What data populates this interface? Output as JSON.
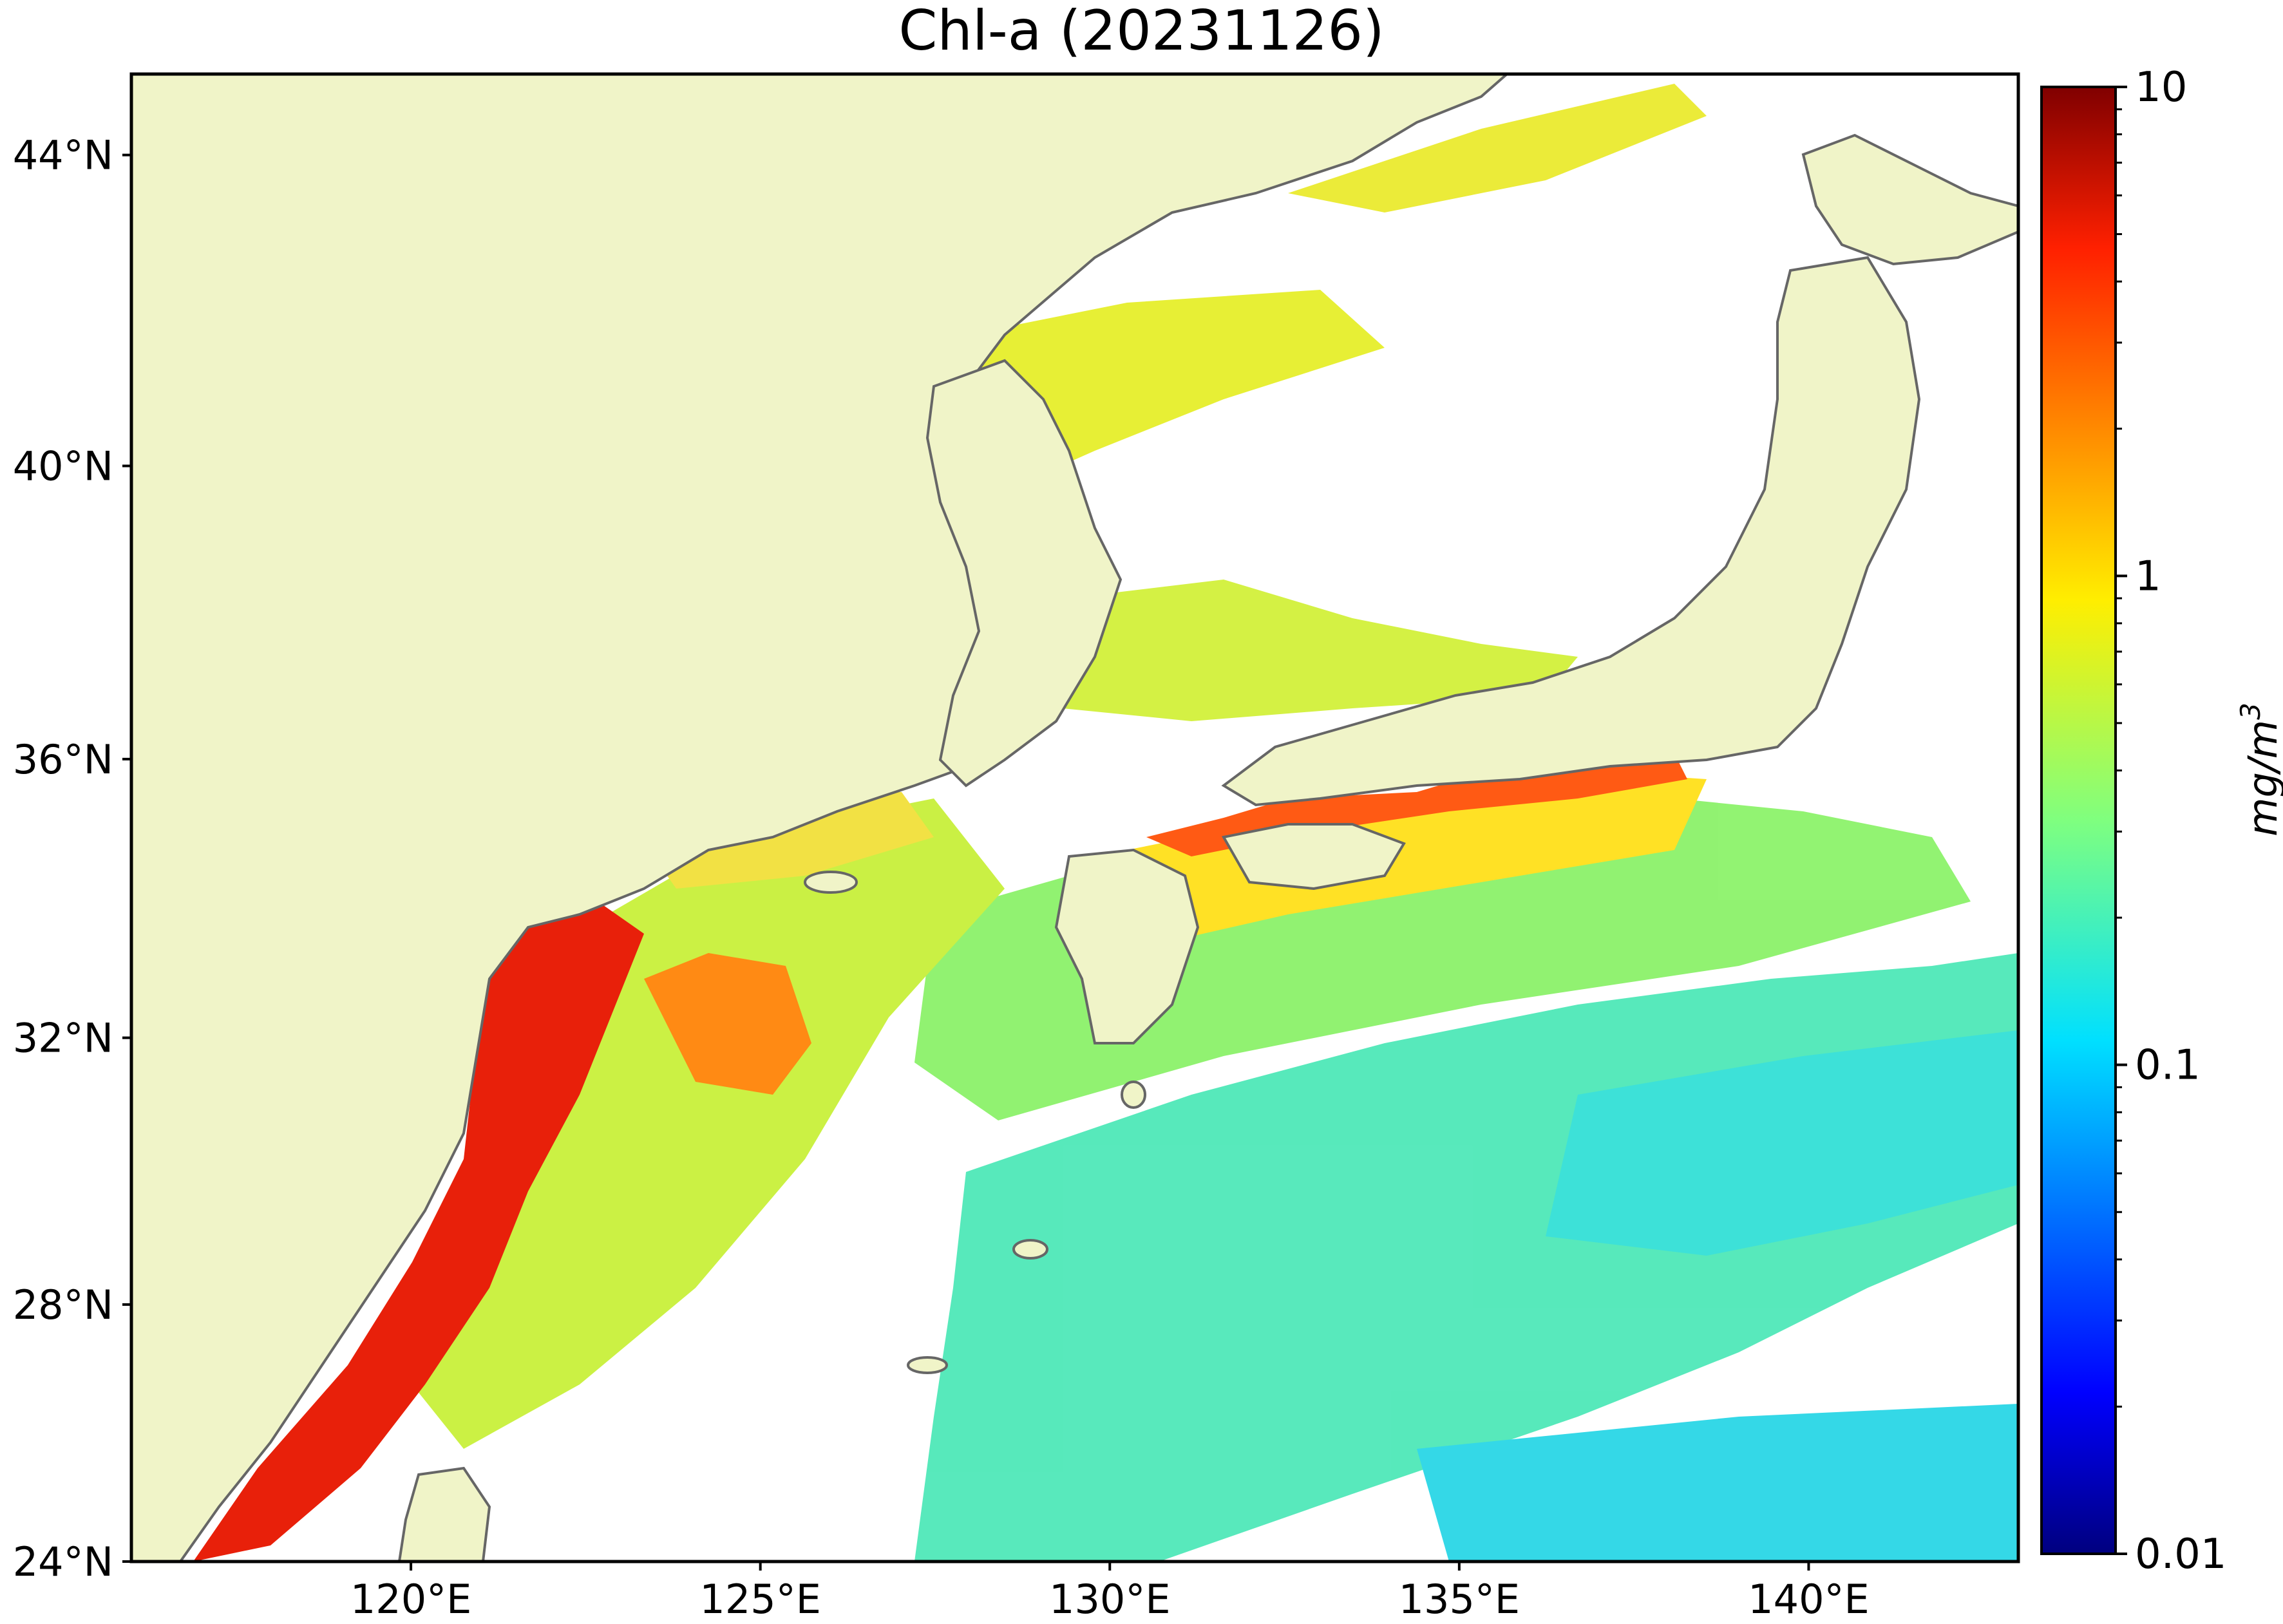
{
  "title": "Chl-a (20231126)",
  "map": {
    "lon_range": [
      116.0,
      143.0
    ],
    "lat_range": [
      24.0,
      45.0
    ],
    "lon_ticks": [
      {
        "value": 120,
        "label": "120°E"
      },
      {
        "value": 125,
        "label": "125°E"
      },
      {
        "value": 130,
        "label": "130°E"
      },
      {
        "value": 135,
        "label": "135°E"
      },
      {
        "value": 140,
        "label": "140°E"
      }
    ],
    "lat_ticks": [
      {
        "value": 24,
        "label": "24°N"
      },
      {
        "value": 28,
        "label": "28°N"
      },
      {
        "value": 32,
        "label": "32°N"
      },
      {
        "value": 36,
        "label": "36°N"
      },
      {
        "value": 40,
        "label": "40°N"
      },
      {
        "value": 44,
        "label": "44°N"
      }
    ],
    "land_color": "#f0f4c8",
    "coast_color": "#666666",
    "nodata_color": "#ffffff"
  },
  "colorbar": {
    "scale": "log",
    "range": [
      0.01,
      10
    ],
    "tick_labels": [
      "10",
      "1",
      "0.1",
      "0.01"
    ],
    "tick_values": [
      10,
      1,
      0.1,
      0.01
    ],
    "unit_label": "mg/m",
    "unit_superscript": "3",
    "colormap": "jet"
  }
}
